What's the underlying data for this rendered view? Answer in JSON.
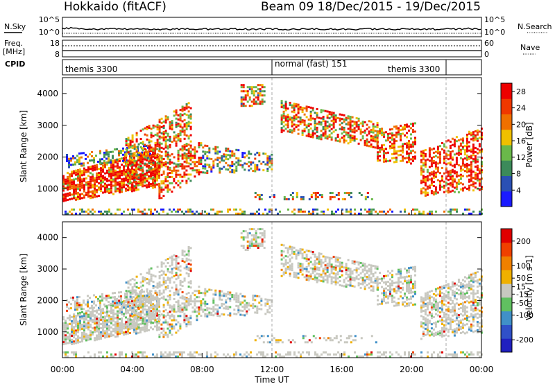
{
  "header": {
    "title_left": "Hokkaido (fitACF)",
    "title_right": "Beam 09  18/Dec/2015 - 19/Dec/2015"
  },
  "left_labels": {
    "nsky": "N.Sky",
    "freq": "Freq.",
    "freq_unit": "[MHz]",
    "cpid": "CPID"
  },
  "right_labels": {
    "nsearch": "N.Search",
    "nave": "Nave"
  },
  "noise_panel": {
    "ticks_left": [
      "10^5",
      "10^0"
    ],
    "ticks_right": [
      "10^5",
      "10^0"
    ]
  },
  "freq_panel": {
    "ticks_left": [
      "18",
      "8"
    ],
    "ticks_right": [
      "60",
      "0"
    ]
  },
  "cpid_panel": {
    "segments": [
      {
        "label": "themis 3300",
        "start_h": 0,
        "end_h": 12
      },
      {
        "label": "normal (fast) 151",
        "start_h": 12,
        "end_h": 22
      },
      {
        "label": "themis 3300",
        "start_h": 22,
        "end_h": 24
      }
    ]
  },
  "colors": {
    "power_scale": [
      "#1a1aff",
      "#2a50b4",
      "#3c8a5a",
      "#6ab84a",
      "#f0c000",
      "#f07000",
      "#f03800",
      "#ee0000"
    ],
    "velocity_scale": [
      "#2020c0",
      "#3050c8",
      "#4090c8",
      "#60c060",
      "#c8c8c0",
      "#f0b000",
      "#f08000",
      "#f04000",
      "#e00000"
    ]
  },
  "chart_data": [
    {
      "type": "heatmap",
      "panel": "power",
      "ylabel": "Slant Range [km]",
      "yticks": [
        "1000",
        "2000",
        "3000",
        "4000"
      ],
      "ylim": [
        180,
        4500
      ],
      "xlim_hours": [
        0,
        24
      ],
      "colorbar_label": "Power [dB]",
      "colorbar_ticks": [
        "4",
        "8",
        "12",
        "16",
        "20",
        "24",
        "28"
      ],
      "colorbar_range": [
        0,
        30
      ]
    },
    {
      "type": "heatmap",
      "panel": "velocity",
      "ylabel": "Slant Range [km]",
      "yticks": [
        "1000",
        "2000",
        "3000",
        "4000"
      ],
      "ylim": [
        180,
        4500
      ],
      "xlim_hours": [
        0,
        24
      ],
      "xlabel": "Time UT",
      "xticks": [
        "00:00",
        "04:00",
        "08:00",
        "12:00",
        "16:00",
        "20:00",
        "00:00"
      ],
      "colorbar_label": "Velocity [m s-1]",
      "colorbar_ticks": [
        "200",
        "100",
        "50",
        "15",
        "-15",
        "-50",
        "-100",
        "-200"
      ],
      "colorbar_range": [
        -250,
        250
      ]
    }
  ]
}
